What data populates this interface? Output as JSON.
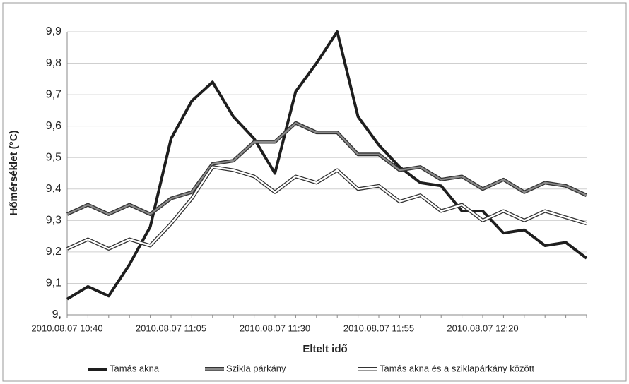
{
  "chart_data": {
    "type": "line",
    "x_label": "Eltelt idő",
    "y_label": "Hőmérséklet (°C)",
    "categories": [
      "2010.08.07 10:40",
      null,
      null,
      null,
      null,
      "2010.08.07 11:05",
      null,
      null,
      null,
      null,
      "2010.08.07 11:30",
      null,
      null,
      null,
      null,
      "2010.08.07 11:55",
      null,
      null,
      null,
      null,
      "2010.08.07 12:20",
      null,
      null,
      null,
      null,
      null
    ],
    "ylim": [
      9,
      9.9
    ],
    "yticks": [
      {
        "value": 9,
        "label": "9,"
      },
      {
        "value": 9.1,
        "label": "9,1"
      },
      {
        "value": 9.2,
        "label": "9,2"
      },
      {
        "value": 9.3,
        "label": "9,3"
      },
      {
        "value": 9.4,
        "label": "9,4"
      },
      {
        "value": 9.5,
        "label": "9,5"
      },
      {
        "value": 9.6,
        "label": "9,6"
      },
      {
        "value": 9.7,
        "label": "9,7"
      },
      {
        "value": 9.8,
        "label": "9,8"
      },
      {
        "value": 9.9,
        "label": "9,9"
      }
    ],
    "grid": true,
    "series": [
      {
        "name": "Tamás akna",
        "color": "#1e1e1e",
        "values": [
          9.05,
          9.09,
          9.06,
          9.16,
          9.28,
          9.56,
          9.68,
          9.74,
          9.63,
          9.56,
          9.45,
          9.71,
          9.8,
          9.9,
          9.63,
          9.54,
          9.47,
          9.42,
          9.41,
          9.33,
          9.33,
          9.26,
          9.27,
          9.22,
          9.23,
          9.18
        ]
      },
      {
        "name": "Szikla párkány",
        "color": "#8a8a8a",
        "values": [
          9.32,
          9.35,
          9.32,
          9.35,
          9.32,
          9.37,
          9.39,
          9.48,
          9.49,
          9.55,
          9.55,
          9.61,
          9.58,
          9.58,
          9.51,
          9.51,
          9.46,
          9.47,
          9.43,
          9.44,
          9.4,
          9.43,
          9.39,
          9.42,
          9.41,
          9.38
        ]
      },
      {
        "name": "Tamás akna és a sziklapárkány között",
        "color": "#ffffff",
        "values": [
          9.21,
          9.24,
          9.21,
          9.24,
          9.22,
          9.29,
          9.37,
          9.47,
          9.46,
          9.44,
          9.39,
          9.44,
          9.42,
          9.46,
          9.4,
          9.41,
          9.36,
          9.38,
          9.33,
          9.35,
          9.3,
          9.33,
          9.3,
          9.33,
          9.31,
          9.29
        ]
      }
    ]
  }
}
